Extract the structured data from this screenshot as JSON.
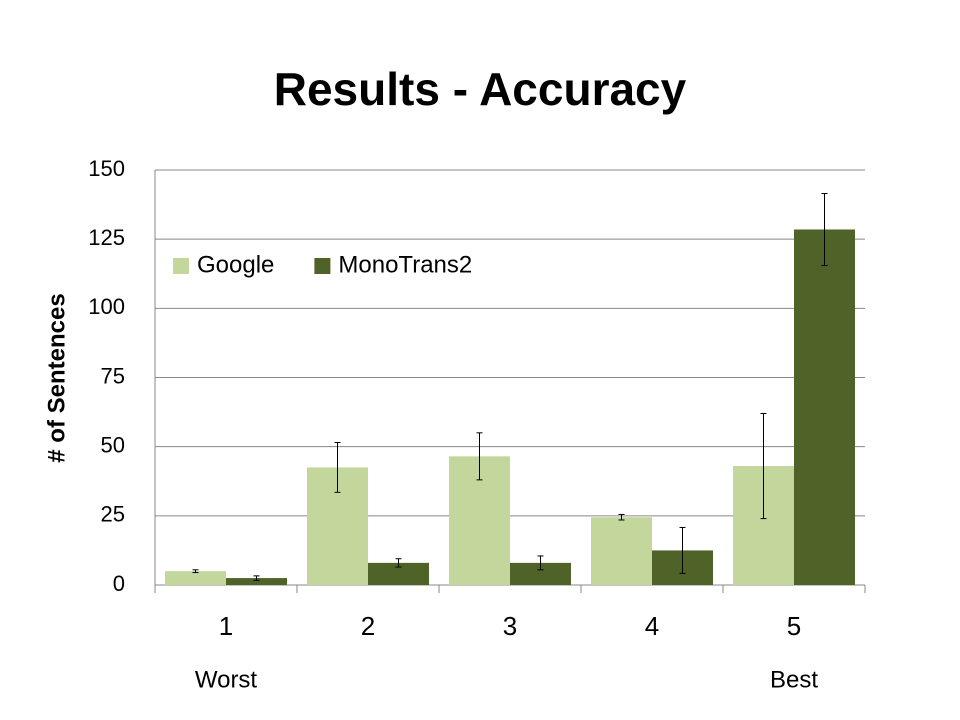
{
  "chart_data": {
    "type": "bar",
    "title": "Results - Accuracy",
    "y_label": "# of Sentences",
    "categories": [
      "1",
      "2",
      "3",
      "4",
      "5"
    ],
    "annotations": [
      "Worst",
      "Best"
    ],
    "series": [
      {
        "name": "Google",
        "color": "#c3d69b",
        "values": [
          5,
          42.5,
          46.5,
          24.5,
          43
        ],
        "errors": [
          0.5,
          9,
          8.5,
          1,
          19
        ]
      },
      {
        "name": "MonoTrans2",
        "color": "#4f6228",
        "values": [
          2.5,
          8,
          8,
          12.5,
          128.5
        ],
        "errors": [
          0.8,
          1.5,
          2.5,
          8.3,
          13
        ]
      }
    ],
    "ylim": [
      0,
      150
    ],
    "yticks": [
      0,
      25,
      50,
      75,
      100,
      125,
      150
    ],
    "grid": true,
    "legend": "top-left"
  }
}
